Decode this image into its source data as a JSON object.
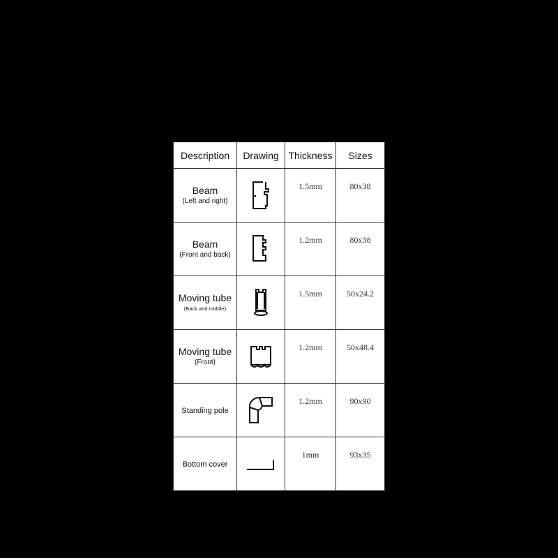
{
  "headers": [
    "Description",
    "Drawing",
    "Thickness",
    "Sizes"
  ],
  "rows": [
    {
      "name": "Beam",
      "sub": "(Left and right)",
      "drawing": "beam-left-right-profile-icon",
      "thickness": "1.5mm",
      "size": "80x38"
    },
    {
      "name": "Beam",
      "sub": "(Front and back)",
      "drawing": "beam-front-back-profile-icon",
      "thickness": "1.2mm",
      "size": "80x38"
    },
    {
      "name": "Moving tube",
      "sub": "(Back and middle)",
      "drawing": "moving-tube-back-profile-icon",
      "thickness": "1.5mm",
      "size": "50x24.2"
    },
    {
      "name": "Moving tube",
      "sub": "(Front)",
      "drawing": "moving-tube-front-profile-icon",
      "thickness": "1.2mm",
      "size": "50x48.4"
    },
    {
      "name": "Standing pole",
      "sub": "",
      "drawing": "standing-pole-profile-icon",
      "thickness": "1.2mm",
      "size": "90x90"
    },
    {
      "name": "Bottom cover",
      "sub": "",
      "drawing": "bottom-cover-profile-icon",
      "thickness": "1mm",
      "size": "93x35"
    }
  ]
}
